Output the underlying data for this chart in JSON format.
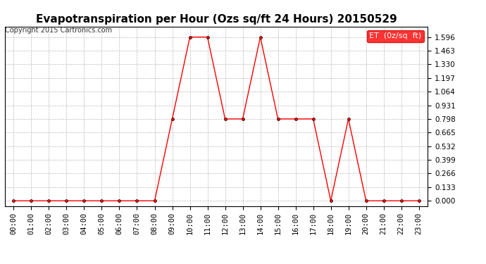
{
  "title": "Evapotranspiration per Hour (Ozs sq/ft 24 Hours) 20150529",
  "copyright": "Copyright 2015 Cartronics.com",
  "legend_label": "ET  (0z/sq  ft)",
  "line_color": "#ff0000",
  "marker_color": "#000000",
  "background_color": "#ffffff",
  "grid_color": "#bbbbbb",
  "hours": [
    "00:00",
    "01:00",
    "02:00",
    "03:00",
    "04:00",
    "05:00",
    "06:00",
    "07:00",
    "08:00",
    "09:00",
    "10:00",
    "11:00",
    "12:00",
    "13:00",
    "14:00",
    "15:00",
    "16:00",
    "17:00",
    "18:00",
    "19:00",
    "20:00",
    "21:00",
    "22:00",
    "23:00"
  ],
  "values": [
    0.0,
    0.0,
    0.0,
    0.0,
    0.0,
    0.0,
    0.0,
    0.0,
    0.0,
    0.798,
    1.596,
    1.596,
    0.798,
    0.798,
    1.596,
    0.798,
    0.798,
    0.798,
    0.0,
    0.798,
    0.0,
    0.0,
    0.0,
    0.0
  ],
  "yticks": [
    0.0,
    0.133,
    0.266,
    0.399,
    0.532,
    0.665,
    0.798,
    0.931,
    1.064,
    1.197,
    1.33,
    1.463,
    1.596
  ],
  "ylim": [
    -0.05,
    1.7
  ],
  "title_fontsize": 11,
  "copyright_fontsize": 7,
  "legend_fontsize": 8,
  "tick_fontsize": 7.5,
  "legend_bg": "#ff0000",
  "legend_text_color": "#ffffff"
}
